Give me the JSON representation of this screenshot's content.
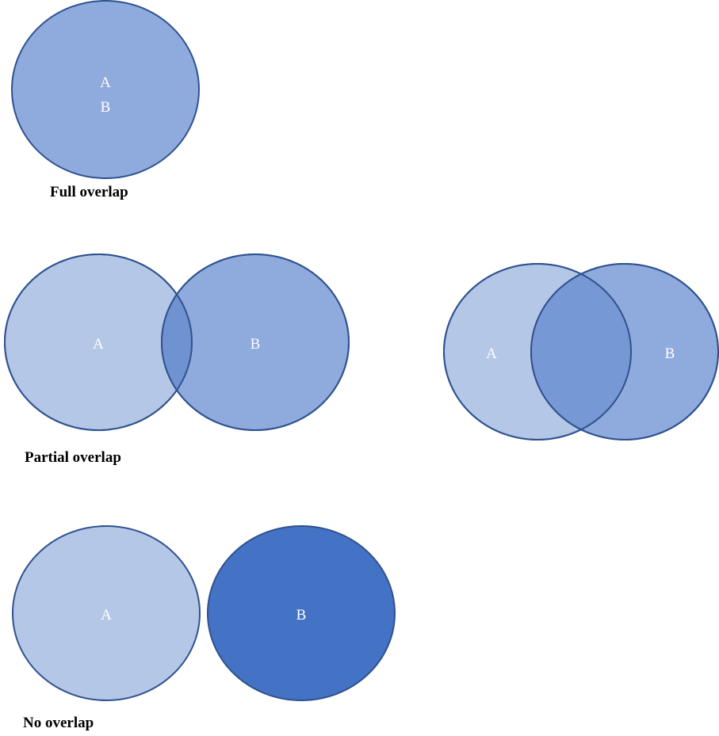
{
  "diagrams": {
    "full": {
      "caption": "Full overlap",
      "set_a": "A",
      "set_b": "B"
    },
    "partial_small": {
      "caption": "Partial overlap",
      "set_a": "A",
      "set_b": "B"
    },
    "partial_large": {
      "set_a": "A",
      "set_b": "B"
    },
    "none": {
      "caption": "No overlap",
      "set_a": "A",
      "set_b": "B"
    }
  },
  "colors": {
    "light_fill": "#b4c7e7",
    "medium_fill": "#8faadc",
    "dark_fill": "#4472c4",
    "overlap_fill": "#6f93d1",
    "stroke": "#2f528f",
    "label": "#ffffff"
  }
}
